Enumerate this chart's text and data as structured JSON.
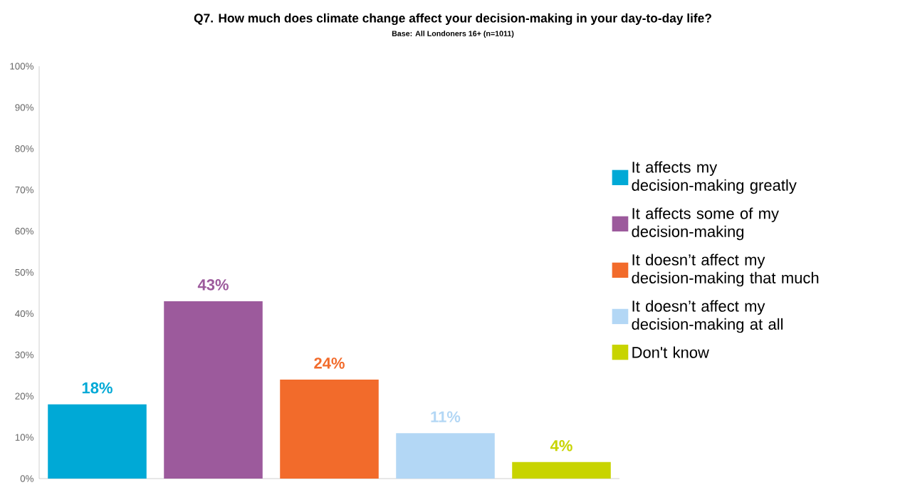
{
  "chart_data": {
    "type": "bar",
    "title": "Q7. How much does climate change affect your decision-making in your day-to-day life?",
    "subtitle": "Base: All Londoners 16+ (n=1011)",
    "categories": [
      null,
      null,
      null,
      null,
      null
    ],
    "series": [
      {
        "name": "It affects my decision-making greatly",
        "color": "#00a9d6",
        "values": [
          18,
          null,
          null,
          null,
          null
        ],
        "value_labels": [
          "18%",
          null,
          null,
          null,
          null
        ]
      },
      {
        "name": "It affects some of my decision-making",
        "color": "#9c5a9c",
        "values": [
          null,
          43,
          null,
          null,
          null
        ],
        "value_labels": [
          null,
          "43%",
          null,
          null,
          null
        ]
      },
      {
        "name": "It doesn’t affect my decision-making that much",
        "color": "#f26b2b",
        "values": [
          null,
          null,
          24,
          null,
          null
        ],
        "value_labels": [
          null,
          null,
          "24%",
          null,
          null
        ]
      },
      {
        "name": "It doesn’t affect my decision-making at all",
        "color": "#b3d7f5",
        "values": [
          null,
          null,
          null,
          11,
          null
        ],
        "value_labels": [
          null,
          null,
          null,
          "11%",
          null
        ]
      },
      {
        "name": "Don't know",
        "color": "#c8d400",
        "values": [
          null,
          null,
          null,
          null,
          4
        ],
        "value_labels": [
          null,
          null,
          null,
          null,
          "4%"
        ]
      }
    ],
    "ylim": [
      0,
      100
    ],
    "yticks": [
      {
        "value": 0,
        "label": "0%"
      },
      {
        "value": 10,
        "label": "10%"
      },
      {
        "value": 20,
        "label": "20%"
      },
      {
        "value": 30,
        "label": "30%"
      },
      {
        "value": 40,
        "label": "40%"
      },
      {
        "value": 50,
        "label": "50%"
      },
      {
        "value": 60,
        "label": "60%"
      },
      {
        "value": 70,
        "label": "70%"
      },
      {
        "value": 80,
        "label": "80%"
      },
      {
        "value": 90,
        "label": "90%"
      },
      {
        "value": 100,
        "label": "100%"
      }
    ],
    "legend": "right",
    "grid": false
  }
}
